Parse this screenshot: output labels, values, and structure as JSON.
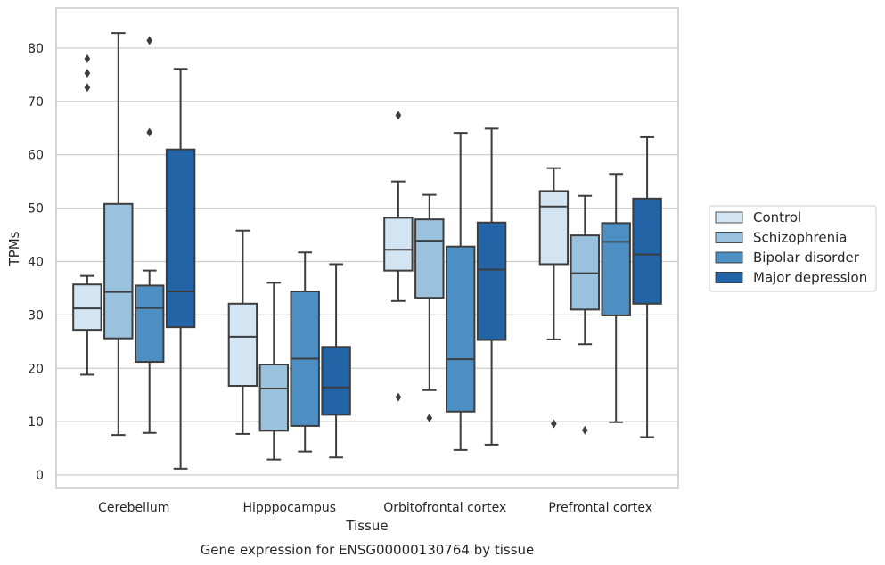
{
  "chart_data": {
    "type": "box",
    "xlabel": "Tissue",
    "ylabel": "TPMs",
    "caption": "Gene expression for ENSG00000130764 by tissue",
    "ylim": [
      -2.5,
      87.5
    ],
    "yticks": [
      0,
      10,
      20,
      30,
      40,
      50,
      60,
      70,
      80
    ],
    "grid": "horizontal",
    "legend_position": "right",
    "categories": [
      "Cerebellum",
      "Hipppocampus",
      "Orbitofrontal cortex",
      "Prefrontal cortex"
    ],
    "series": [
      {
        "name": "Control",
        "color": "#d3e4f3",
        "boxes": [
          {
            "whislo": 18.8,
            "q1": 27.2,
            "med": 31.2,
            "q3": 35.7,
            "whishi": 37.3,
            "fliers": [
              72.6,
              75.3,
              78.0
            ]
          },
          {
            "whislo": 7.7,
            "q1": 16.7,
            "med": 25.9,
            "q3": 32.1,
            "whishi": 45.8,
            "fliers": []
          },
          {
            "whislo": 32.6,
            "q1": 38.3,
            "med": 42.2,
            "q3": 48.2,
            "whishi": 55.0,
            "fliers": [
              14.6,
              67.4
            ]
          },
          {
            "whislo": 25.4,
            "q1": 39.5,
            "med": 50.3,
            "q3": 53.2,
            "whishi": 57.5,
            "fliers": [
              9.6
            ]
          }
        ]
      },
      {
        "name": "Schizophrenia",
        "color": "#9ac2de",
        "boxes": [
          {
            "whislo": 7.5,
            "q1": 25.6,
            "med": 34.3,
            "q3": 50.8,
            "whishi": 82.8,
            "fliers": []
          },
          {
            "whislo": 2.9,
            "q1": 8.3,
            "med": 16.2,
            "q3": 20.7,
            "whishi": 36.0,
            "fliers": []
          },
          {
            "whislo": 15.9,
            "q1": 33.2,
            "med": 43.9,
            "q3": 47.9,
            "whishi": 52.5,
            "fliers": [
              10.7
            ]
          },
          {
            "whislo": 24.5,
            "q1": 31.0,
            "med": 37.8,
            "q3": 44.9,
            "whishi": 52.3,
            "fliers": [
              8.4
            ]
          }
        ]
      },
      {
        "name": "Bipolar disorder",
        "color": "#4d8fc3",
        "boxes": [
          {
            "whislo": 7.9,
            "q1": 21.2,
            "med": 31.3,
            "q3": 35.5,
            "whishi": 38.3,
            "fliers": [
              64.2,
              81.4
            ]
          },
          {
            "whislo": 4.4,
            "q1": 9.2,
            "med": 21.8,
            "q3": 34.4,
            "whishi": 41.7,
            "fliers": []
          },
          {
            "whislo": 4.7,
            "q1": 11.9,
            "med": 21.7,
            "q3": 42.8,
            "whishi": 64.1,
            "fliers": []
          },
          {
            "whislo": 9.9,
            "q1": 29.9,
            "med": 43.7,
            "q3": 47.2,
            "whishi": 56.4,
            "fliers": []
          }
        ]
      },
      {
        "name": "Major depression",
        "color": "#2264a6",
        "boxes": [
          {
            "whislo": 1.2,
            "q1": 27.7,
            "med": 34.4,
            "q3": 61.0,
            "whishi": 76.1,
            "fliers": []
          },
          {
            "whislo": 3.3,
            "q1": 11.3,
            "med": 16.4,
            "q3": 24.0,
            "whishi": 39.5,
            "fliers": []
          },
          {
            "whislo": 5.7,
            "q1": 25.3,
            "med": 38.5,
            "q3": 47.3,
            "whishi": 64.9,
            "fliers": []
          },
          {
            "whislo": 7.1,
            "q1": 32.1,
            "med": 41.3,
            "q3": 51.8,
            "whishi": 63.3,
            "fliers": []
          }
        ]
      }
    ]
  }
}
